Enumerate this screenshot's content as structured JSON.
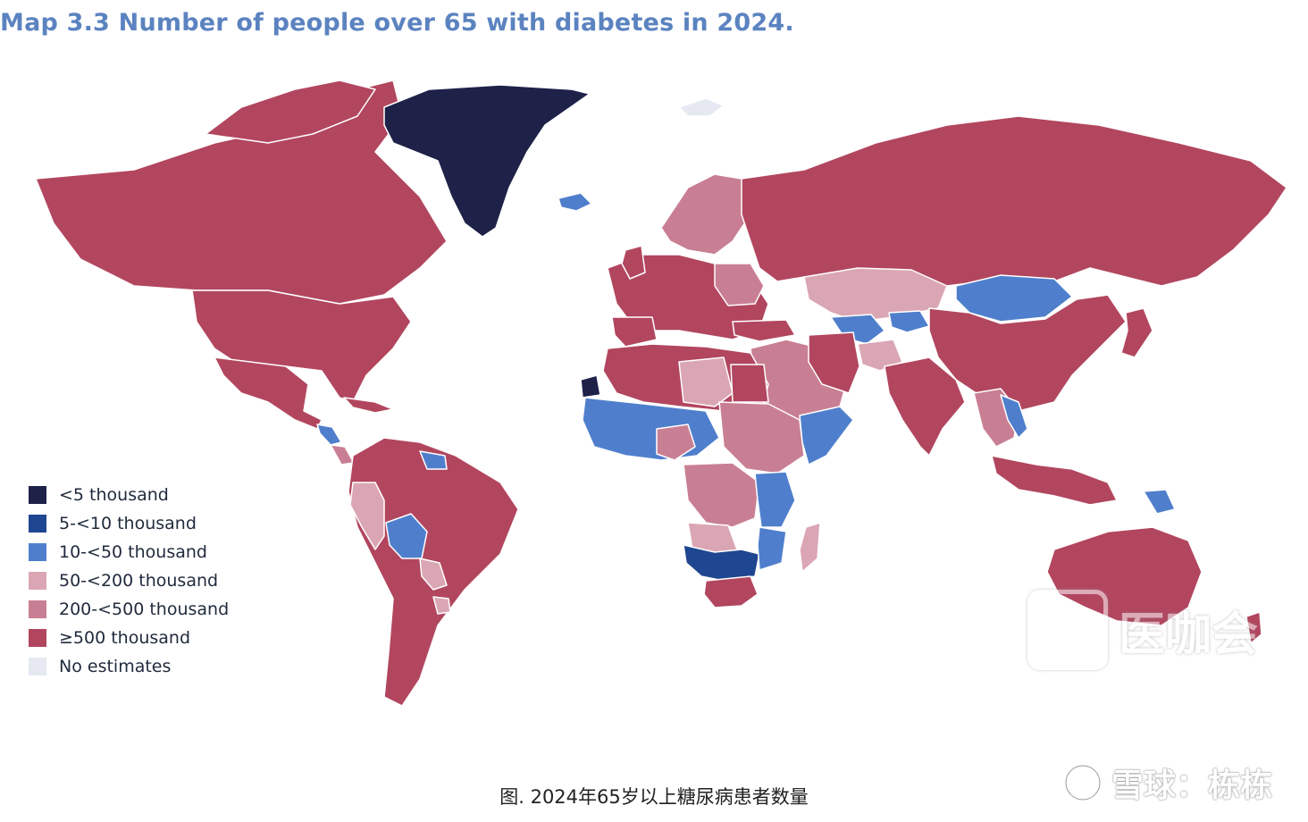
{
  "title": "Map 3.3 Number of people over 65 with diabetes in 2024.",
  "legend": [
    {
      "label": "<5 thousand",
      "color": "#1e2148"
    },
    {
      "label": "5-<10 thousand",
      "color": "#1f4690"
    },
    {
      "label": "10-<50 thousand",
      "color": "#4f7fcc"
    },
    {
      "label": "50-<200 thousand",
      "color": "#dba6b4"
    },
    {
      "label": "200-<500 thousand",
      "color": "#c97f93"
    },
    {
      "label": "≥500 thousand",
      "color": "#b2465f"
    },
    {
      "label": "No estimates",
      "color": "#e6e9f2"
    }
  ],
  "caption": "图. 2024年65岁以上糖尿病患者数量",
  "watermark_bottom": "雪球：栋栋",
  "watermark_center": "医咖会",
  "colors": {
    "title": "#5b83c0",
    "high": "#b2465f",
    "mid": "#c97f93",
    "low_mid": "#dba6b4",
    "light_blue": "#4f7fcc",
    "dark_blue": "#1f4690",
    "darkest": "#1e2148"
  }
}
